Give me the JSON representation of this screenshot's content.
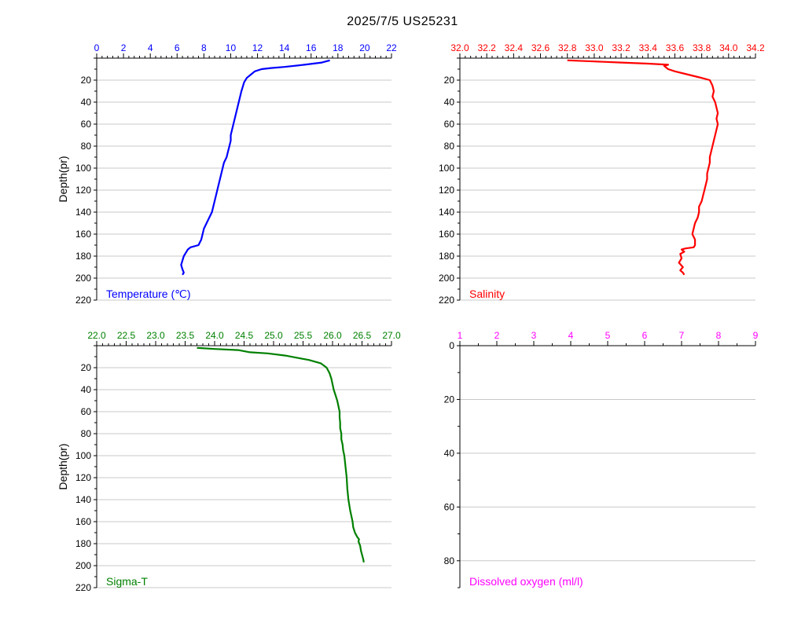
{
  "title": "2025/7/5  US25231",
  "chart_data": [
    {
      "type": "line",
      "label": "Temperature (℃)",
      "ylabel": "Depth(pr)",
      "color": "#0000ff",
      "xlim": [
        0,
        22
      ],
      "ylim": [
        220,
        0
      ],
      "x_ticks": [
        "0",
        "2",
        "4",
        "6",
        "8",
        "10",
        "12",
        "14",
        "16",
        "18",
        "20",
        "22"
      ],
      "y_ticks": [
        "20",
        "40",
        "60",
        "80",
        "100",
        "120",
        "140",
        "160",
        "180",
        "200",
        "220"
      ],
      "grid": "horizontal",
      "series": [
        {
          "x": [
            17.4,
            16.8,
            15.5,
            14.0,
            13.0,
            12.3,
            11.8,
            11.5,
            11.2,
            11.0,
            10.9,
            10.8,
            10.7,
            10.6,
            10.5,
            10.4,
            10.3,
            10.2,
            10.1,
            10.0,
            10.0,
            9.9,
            9.8,
            9.7,
            9.5,
            9.4,
            9.3,
            9.2,
            9.1,
            9.0,
            8.9,
            8.8,
            8.7,
            8.6,
            8.4,
            8.2,
            8.0,
            7.9,
            7.8,
            7.6,
            7.0,
            6.8,
            6.7,
            6.6,
            6.5,
            6.4,
            6.3,
            6.4,
            6.5,
            6.4
          ],
          "y": [
            2,
            4,
            6,
            8,
            9,
            10,
            12,
            15,
            18,
            22,
            26,
            30,
            35,
            40,
            45,
            50,
            55,
            60,
            65,
            70,
            75,
            80,
            85,
            90,
            95,
            100,
            105,
            110,
            115,
            120,
            125,
            130,
            135,
            140,
            145,
            150,
            155,
            160,
            165,
            170,
            172,
            174,
            176,
            178,
            180,
            184,
            188,
            192,
            195,
            197
          ]
        }
      ]
    },
    {
      "type": "line",
      "label": "Salinity",
      "color": "#ff0000",
      "xlim": [
        32.0,
        34.2
      ],
      "ylim": [
        220,
        0
      ],
      "x_ticks": [
        "32.0",
        "32.2",
        "32.4",
        "32.6",
        "32.8",
        "33.0",
        "33.2",
        "33.4",
        "33.6",
        "33.8",
        "34.0",
        "34.2"
      ],
      "y_ticks": [
        "20",
        "40",
        "60",
        "80",
        "100",
        "120",
        "140",
        "160",
        "180",
        "200",
        "220"
      ],
      "grid": "horizontal",
      "series": [
        {
          "x": [
            32.8,
            33.0,
            33.2,
            33.4,
            33.55,
            33.52,
            33.55,
            33.6,
            33.7,
            33.8,
            33.86,
            33.88,
            33.89,
            33.88,
            33.9,
            33.91,
            33.92,
            33.91,
            33.92,
            33.91,
            33.9,
            33.89,
            33.88,
            33.87,
            33.86,
            33.86,
            33.85,
            33.84,
            33.84,
            33.83,
            33.82,
            33.81,
            33.8,
            33.78,
            33.78,
            33.77,
            33.75,
            33.74,
            33.73,
            33.75,
            33.75,
            33.74,
            33.68,
            33.65,
            33.67,
            33.64,
            33.65,
            33.63,
            33.66,
            33.64,
            33.66,
            33.67
          ],
          "y": [
            2,
            3,
            4,
            5,
            6,
            7,
            10,
            12,
            15,
            18,
            20,
            25,
            30,
            35,
            40,
            45,
            50,
            55,
            60,
            65,
            70,
            75,
            80,
            85,
            90,
            95,
            100,
            105,
            110,
            115,
            120,
            125,
            130,
            135,
            140,
            145,
            150,
            155,
            160,
            165,
            170,
            172,
            173,
            174,
            176,
            178,
            182,
            186,
            190,
            193,
            195,
            197
          ]
        }
      ]
    },
    {
      "type": "line",
      "label": "Sigma-T",
      "ylabel": "Depth(pr)",
      "color": "#008000",
      "xlim": [
        22.0,
        27.0
      ],
      "ylim": [
        220,
        0
      ],
      "x_ticks": [
        "22.0",
        "22.5",
        "23.0",
        "23.5",
        "24.0",
        "24.5",
        "25.0",
        "25.5",
        "26.0",
        "26.5",
        "27.0"
      ],
      "y_ticks": [
        "20",
        "40",
        "60",
        "80",
        "100",
        "120",
        "140",
        "160",
        "180",
        "200",
        "220"
      ],
      "grid": "horizontal",
      "series": [
        {
          "x": [
            23.7,
            24.0,
            24.4,
            24.6,
            24.9,
            25.2,
            25.4,
            25.6,
            25.8,
            25.9,
            25.95,
            25.98,
            26.0,
            26.02,
            26.05,
            26.08,
            26.1,
            26.12,
            26.12,
            26.13,
            26.13,
            26.15,
            26.15,
            26.17,
            26.18,
            26.2,
            26.22,
            26.24,
            26.25,
            26.27,
            26.3,
            26.32,
            26.34,
            26.35,
            26.38,
            26.4,
            26.42,
            26.45,
            26.44,
            26.47,
            26.48,
            26.5,
            26.52,
            26.53
          ],
          "y": [
            2,
            3,
            4,
            6,
            7,
            9,
            11,
            13,
            16,
            20,
            25,
            30,
            35,
            40,
            45,
            50,
            55,
            60,
            65,
            70,
            75,
            80,
            85,
            90,
            95,
            100,
            110,
            120,
            130,
            140,
            150,
            155,
            160,
            165,
            170,
            172,
            174,
            176,
            178,
            182,
            186,
            190,
            194,
            197
          ]
        }
      ]
    },
    {
      "type": "line",
      "label": "Dissolved oxygen (ml/l)",
      "color": "#ff00ff",
      "xlim": [
        1,
        9
      ],
      "ylim": [
        90,
        0
      ],
      "x_ticks": [
        "1",
        "2",
        "3",
        "4",
        "5",
        "6",
        "7",
        "8",
        "9"
      ],
      "y_ticks": [
        "0",
        "20",
        "40",
        "60",
        "80"
      ],
      "grid": "horizontal",
      "series": []
    }
  ]
}
